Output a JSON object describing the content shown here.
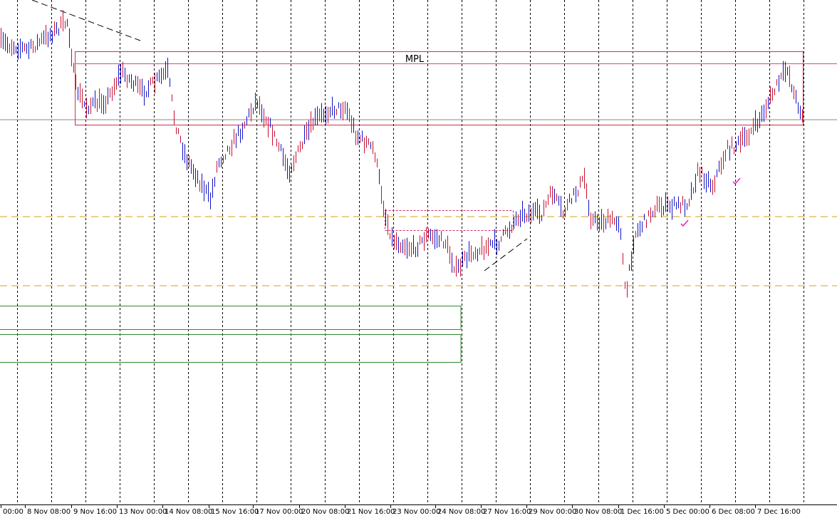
{
  "annotation": "MPL",
  "time_axis": {
    "labels": [
      "00:00",
      "8 Nov 08:00",
      "9 Nov 16:00",
      "13 Nov 00:00",
      "14 Nov 08:00",
      "15 Nov 16:00",
      "17 Nov 00:00",
      "20 Nov 08:00",
      "21 Nov 16:00",
      "23 Nov 00:00",
      "24 Nov 08:00",
      "27 Nov 16:00",
      "29 Nov 00:00",
      "30 Nov 08:00",
      "1 Dec 16:00",
      "5 Dec 00:00",
      "6 Dec 08:00",
      "7 Dec 16:00"
    ]
  }
}
